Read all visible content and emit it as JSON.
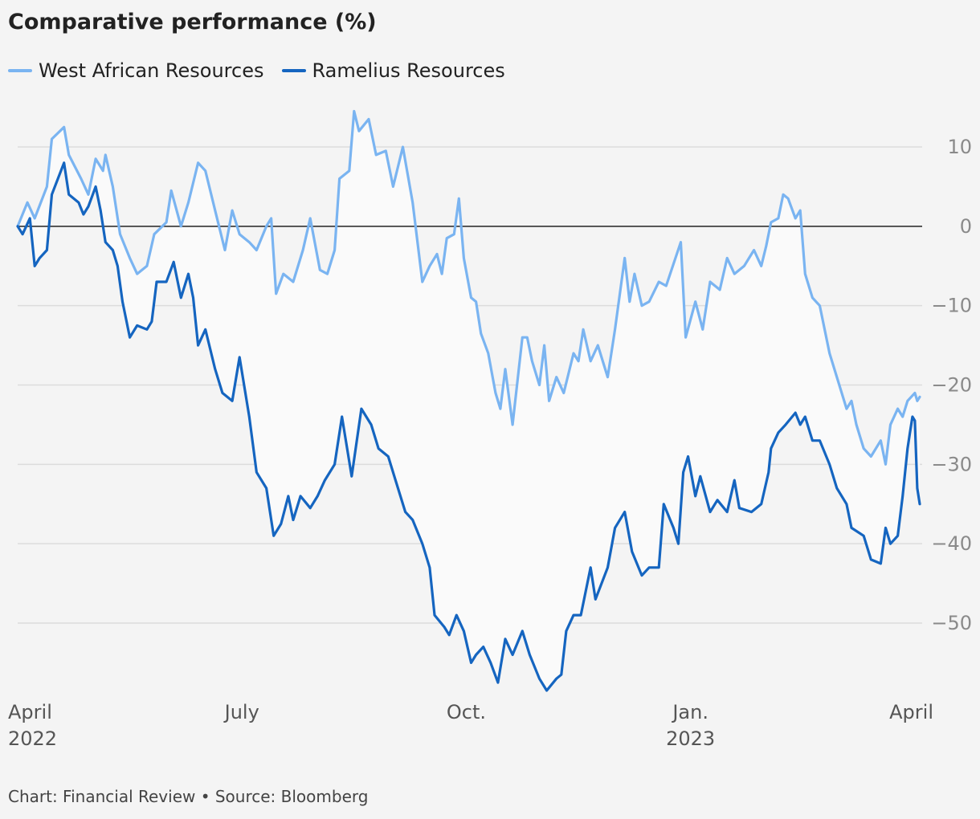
{
  "title": "Comparative performance (%)",
  "footer": "Chart: Financial Review • Source: Bloomberg",
  "chart_data": {
    "type": "line",
    "x_ticks": [
      {
        "date": "2022-04-01",
        "label": [
          "April",
          "2022"
        ]
      },
      {
        "date": "2022-07-01",
        "label": [
          "July"
        ]
      },
      {
        "date": "2022-10-01",
        "label": [
          "Oct."
        ]
      },
      {
        "date": "2023-01-01",
        "label": [
          "Jan.",
          "2023"
        ]
      },
      {
        "date": "2023-04-01",
        "label": [
          "April"
        ]
      }
    ],
    "xlim": [
      "2022-03-31",
      "2023-04-06"
    ],
    "ylim": [
      -58,
      15
    ],
    "y_ticks": [
      10,
      0,
      -10,
      -20,
      -30,
      -40,
      -50
    ],
    "y_tick_labels": [
      "10",
      "0",
      "−10",
      "−20",
      "−30",
      "−40",
      "−50"
    ],
    "zero_line": 0,
    "grid": true,
    "legend_position": "top-left",
    "colors": {
      "West African Resources": "#7ab4f1",
      "Ramelius Resources": "#1565c0",
      "fill": "#fafafa"
    },
    "series": [
      {
        "name": "West African Resources",
        "color": "#7ab4f1",
        "points": [
          [
            "2022-03-31",
            0
          ],
          [
            "2022-04-04",
            3
          ],
          [
            "2022-04-07",
            1
          ],
          [
            "2022-04-12",
            5
          ],
          [
            "2022-04-14",
            11
          ],
          [
            "2022-04-19",
            12.5
          ],
          [
            "2022-04-21",
            9
          ],
          [
            "2022-04-26",
            6
          ],
          [
            "2022-04-29",
            4
          ],
          [
            "2022-05-02",
            8.5
          ],
          [
            "2022-05-05",
            7
          ],
          [
            "2022-05-06",
            9
          ],
          [
            "2022-05-09",
            5
          ],
          [
            "2022-05-12",
            -1
          ],
          [
            "2022-05-16",
            -4
          ],
          [
            "2022-05-19",
            -6
          ],
          [
            "2022-05-23",
            -5
          ],
          [
            "2022-05-26",
            -1
          ],
          [
            "2022-05-31",
            0.5
          ],
          [
            "2022-06-02",
            4.5
          ],
          [
            "2022-06-06",
            0
          ],
          [
            "2022-06-09",
            3
          ],
          [
            "2022-06-13",
            8
          ],
          [
            "2022-06-16",
            7
          ],
          [
            "2022-06-20",
            2
          ],
          [
            "2022-06-24",
            -3
          ],
          [
            "2022-06-27",
            2
          ],
          [
            "2022-06-30",
            -1
          ],
          [
            "2022-07-04",
            -2
          ],
          [
            "2022-07-07",
            -3
          ],
          [
            "2022-07-11",
            0
          ],
          [
            "2022-07-13",
            1
          ],
          [
            "2022-07-15",
            -8.5
          ],
          [
            "2022-07-18",
            -6
          ],
          [
            "2022-07-22",
            -7
          ],
          [
            "2022-07-26",
            -3
          ],
          [
            "2022-07-29",
            1
          ],
          [
            "2022-08-02",
            -5.5
          ],
          [
            "2022-08-05",
            -6
          ],
          [
            "2022-08-08",
            -3
          ],
          [
            "2022-08-10",
            6
          ],
          [
            "2022-08-14",
            7
          ],
          [
            "2022-08-16",
            14.5
          ],
          [
            "2022-08-18",
            12
          ],
          [
            "2022-08-22",
            13.5
          ],
          [
            "2022-08-25",
            9
          ],
          [
            "2022-08-29",
            9.5
          ],
          [
            "2022-09-01",
            5
          ],
          [
            "2022-09-05",
            10
          ],
          [
            "2022-09-09",
            3
          ],
          [
            "2022-09-13",
            -7
          ],
          [
            "2022-09-16",
            -5
          ],
          [
            "2022-09-19",
            -3.5
          ],
          [
            "2022-09-21",
            -6
          ],
          [
            "2022-09-23",
            -1.5
          ],
          [
            "2022-09-26",
            -1
          ],
          [
            "2022-09-28",
            3.5
          ],
          [
            "2022-09-30",
            -4
          ],
          [
            "2022-10-03",
            -9
          ],
          [
            "2022-10-05",
            -9.5
          ],
          [
            "2022-10-07",
            -13.5
          ],
          [
            "2022-10-10",
            -16
          ],
          [
            "2022-10-13",
            -21
          ],
          [
            "2022-10-15",
            -23
          ],
          [
            "2022-10-17",
            -18
          ],
          [
            "2022-10-20",
            -25
          ],
          [
            "2022-10-24",
            -14
          ],
          [
            "2022-10-26",
            -14
          ],
          [
            "2022-10-28",
            -17
          ],
          [
            "2022-10-31",
            -20
          ],
          [
            "2022-11-02",
            -15
          ],
          [
            "2022-11-04",
            -22
          ],
          [
            "2022-11-07",
            -19
          ],
          [
            "2022-11-10",
            -21
          ],
          [
            "2022-11-14",
            -16
          ],
          [
            "2022-11-16",
            -17
          ],
          [
            "2022-11-18",
            -13
          ],
          [
            "2022-11-21",
            -17
          ],
          [
            "2022-11-24",
            -15
          ],
          [
            "2022-11-28",
            -19
          ],
          [
            "2022-12-01",
            -13
          ],
          [
            "2022-12-05",
            -4
          ],
          [
            "2022-12-07",
            -9.5
          ],
          [
            "2022-12-09",
            -6
          ],
          [
            "2022-12-12",
            -10
          ],
          [
            "2022-12-15",
            -9.5
          ],
          [
            "2022-12-19",
            -7
          ],
          [
            "2022-12-22",
            -7.5
          ],
          [
            "2022-12-28",
            -2
          ],
          [
            "2022-12-30",
            -14
          ],
          [
            "2023-01-03",
            -9.5
          ],
          [
            "2023-01-06",
            -13
          ],
          [
            "2023-01-09",
            -7
          ],
          [
            "2023-01-13",
            -8
          ],
          [
            "2023-01-16",
            -4
          ],
          [
            "2023-01-19",
            -6
          ],
          [
            "2023-01-23",
            -5
          ],
          [
            "2023-01-25",
            -4
          ],
          [
            "2023-01-27",
            -3
          ],
          [
            "2023-01-30",
            -5
          ],
          [
            "2023-02-01",
            -2.5
          ],
          [
            "2023-02-03",
            0.5
          ],
          [
            "2023-02-06",
            1
          ],
          [
            "2023-02-08",
            4
          ],
          [
            "2023-02-10",
            3.5
          ],
          [
            "2023-02-13",
            1
          ],
          [
            "2023-02-15",
            2
          ],
          [
            "2023-02-17",
            -6
          ],
          [
            "2023-02-20",
            -9
          ],
          [
            "2023-02-23",
            -10
          ],
          [
            "2023-02-27",
            -16
          ],
          [
            "2023-03-02",
            -19
          ],
          [
            "2023-03-06",
            -23
          ],
          [
            "2023-03-08",
            -22
          ],
          [
            "2023-03-10",
            -25
          ],
          [
            "2023-03-13",
            -28
          ],
          [
            "2023-03-16",
            -29
          ],
          [
            "2023-03-20",
            -27
          ],
          [
            "2023-03-22",
            -30
          ],
          [
            "2023-03-24",
            -25
          ],
          [
            "2023-03-27",
            -23
          ],
          [
            "2023-03-29",
            -24
          ],
          [
            "2023-03-31",
            -22
          ],
          [
            "2023-04-03",
            -21
          ],
          [
            "2023-04-04",
            -22
          ],
          [
            "2023-04-05",
            -21.5
          ]
        ]
      },
      {
        "name": "Ramelius Resources",
        "color": "#1565c0",
        "points": [
          [
            "2022-03-31",
            0
          ],
          [
            "2022-04-02",
            -1
          ],
          [
            "2022-04-05",
            1
          ],
          [
            "2022-04-07",
            -5
          ],
          [
            "2022-04-09",
            -4
          ],
          [
            "2022-04-12",
            -3
          ],
          [
            "2022-04-14",
            4
          ],
          [
            "2022-04-19",
            8
          ],
          [
            "2022-04-21",
            4
          ],
          [
            "2022-04-25",
            3
          ],
          [
            "2022-04-27",
            1.5
          ],
          [
            "2022-04-29",
            2.5
          ],
          [
            "2022-05-02",
            5
          ],
          [
            "2022-05-04",
            2
          ],
          [
            "2022-05-06",
            -2
          ],
          [
            "2022-05-09",
            -3
          ],
          [
            "2022-05-11",
            -5
          ],
          [
            "2022-05-13",
            -9.5
          ],
          [
            "2022-05-16",
            -14
          ],
          [
            "2022-05-19",
            -12.5
          ],
          [
            "2022-05-23",
            -13
          ],
          [
            "2022-05-25",
            -12
          ],
          [
            "2022-05-27",
            -7
          ],
          [
            "2022-05-31",
            -7
          ],
          [
            "2022-06-03",
            -4.5
          ],
          [
            "2022-06-06",
            -9
          ],
          [
            "2022-06-09",
            -6
          ],
          [
            "2022-06-11",
            -9
          ],
          [
            "2022-06-13",
            -15
          ],
          [
            "2022-06-16",
            -13
          ],
          [
            "2022-06-20",
            -18
          ],
          [
            "2022-06-23",
            -21
          ],
          [
            "2022-06-27",
            -22
          ],
          [
            "2022-06-30",
            -16.5
          ],
          [
            "2022-07-04",
            -24
          ],
          [
            "2022-07-07",
            -31
          ],
          [
            "2022-07-11",
            -33
          ],
          [
            "2022-07-14",
            -39
          ],
          [
            "2022-07-17",
            -37.5
          ],
          [
            "2022-07-20",
            -34
          ],
          [
            "2022-07-22",
            -37
          ],
          [
            "2022-07-25",
            -34
          ],
          [
            "2022-07-29",
            -35.5
          ],
          [
            "2022-08-01",
            -34
          ],
          [
            "2022-08-04",
            -32
          ],
          [
            "2022-08-08",
            -30
          ],
          [
            "2022-08-11",
            -24
          ],
          [
            "2022-08-15",
            -31.5
          ],
          [
            "2022-08-19",
            -23
          ],
          [
            "2022-08-23",
            -25
          ],
          [
            "2022-08-26",
            -28
          ],
          [
            "2022-08-30",
            -29
          ],
          [
            "2022-09-02",
            -32
          ],
          [
            "2022-09-06",
            -36
          ],
          [
            "2022-09-09",
            -37
          ],
          [
            "2022-09-13",
            -40
          ],
          [
            "2022-09-16",
            -43
          ],
          [
            "2022-09-18",
            -49
          ],
          [
            "2022-09-22",
            -50.5
          ],
          [
            "2022-09-24",
            -51.5
          ],
          [
            "2022-09-27",
            -49
          ],
          [
            "2022-09-30",
            -51
          ],
          [
            "2022-10-03",
            -55
          ],
          [
            "2022-10-05",
            -54
          ],
          [
            "2022-10-08",
            -53
          ],
          [
            "2022-10-11",
            -55
          ],
          [
            "2022-10-14",
            -57.5
          ],
          [
            "2022-10-17",
            -52
          ],
          [
            "2022-10-20",
            -54
          ],
          [
            "2022-10-24",
            -51
          ],
          [
            "2022-10-27",
            -54
          ],
          [
            "2022-10-31",
            -57
          ],
          [
            "2022-11-03",
            -58.5
          ],
          [
            "2022-11-07",
            -57
          ],
          [
            "2022-11-09",
            -56.5
          ],
          [
            "2022-11-11",
            -51
          ],
          [
            "2022-11-14",
            -49
          ],
          [
            "2022-11-17",
            -49
          ],
          [
            "2022-11-21",
            -43
          ],
          [
            "2022-11-23",
            -47
          ],
          [
            "2022-11-28",
            -43
          ],
          [
            "2022-12-01",
            -38
          ],
          [
            "2022-12-05",
            -36
          ],
          [
            "2022-12-08",
            -41
          ],
          [
            "2022-12-12",
            -44
          ],
          [
            "2022-12-15",
            -43
          ],
          [
            "2022-12-19",
            -43
          ],
          [
            "2022-12-21",
            -35
          ],
          [
            "2022-12-25",
            -38
          ],
          [
            "2022-12-27",
            -40
          ],
          [
            "2022-12-29",
            -31
          ],
          [
            "2022-12-31",
            -29
          ],
          [
            "2023-01-03",
            -34
          ],
          [
            "2023-01-05",
            -31.5
          ],
          [
            "2023-01-09",
            -36
          ],
          [
            "2023-01-12",
            -34.5
          ],
          [
            "2023-01-16",
            -36
          ],
          [
            "2023-01-19",
            -32
          ],
          [
            "2023-01-21",
            -35.5
          ],
          [
            "2023-01-26",
            -36
          ],
          [
            "2023-01-30",
            -35
          ],
          [
            "2023-02-02",
            -31
          ],
          [
            "2023-02-03",
            -28
          ],
          [
            "2023-02-06",
            -26
          ],
          [
            "2023-02-09",
            -25
          ],
          [
            "2023-02-13",
            -23.5
          ],
          [
            "2023-02-15",
            -25
          ],
          [
            "2023-02-17",
            -24
          ],
          [
            "2023-02-20",
            -27
          ],
          [
            "2023-02-23",
            -27
          ],
          [
            "2023-02-27",
            -30
          ],
          [
            "2023-03-02",
            -33
          ],
          [
            "2023-03-06",
            -35
          ],
          [
            "2023-03-08",
            -38
          ],
          [
            "2023-03-13",
            -39
          ],
          [
            "2023-03-16",
            -42
          ],
          [
            "2023-03-20",
            -42.5
          ],
          [
            "2023-03-22",
            -38
          ],
          [
            "2023-03-24",
            -40
          ],
          [
            "2023-03-27",
            -39
          ],
          [
            "2023-03-29",
            -34
          ],
          [
            "2023-03-31",
            -28
          ],
          [
            "2023-04-01",
            -26
          ],
          [
            "2023-04-02",
            -24
          ],
          [
            "2023-04-03",
            -24.5
          ],
          [
            "2023-04-04",
            -33
          ],
          [
            "2023-04-05",
            -35
          ]
        ]
      }
    ]
  }
}
